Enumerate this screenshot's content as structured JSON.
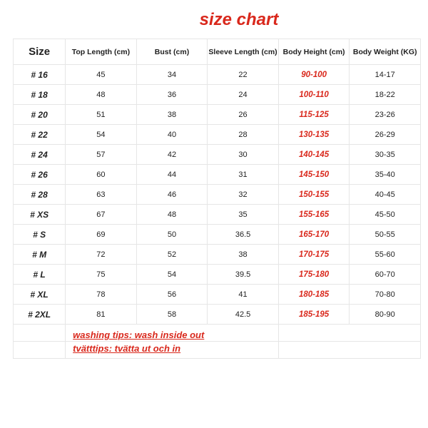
{
  "title": "size chart",
  "title_color": "#d9281c",
  "title_fontsize": 24,
  "border_color": "#e6e6e6",
  "highlight_color": "#d9281c",
  "text_color": "#222222",
  "columns": [
    {
      "label": "Size",
      "key": "size",
      "width": 72,
      "is_label": true
    },
    {
      "label": "Top Length (cm)",
      "key": "top_length",
      "width": 98
    },
    {
      "label": "Bust (cm)",
      "key": "bust",
      "width": 98
    },
    {
      "label": "Sleeve Length (cm)",
      "key": "sleeve",
      "width": 98
    },
    {
      "label": "Body Height (cm)",
      "key": "height",
      "width": 98,
      "highlight": true
    },
    {
      "label": "Body Weight (KG)",
      "key": "weight",
      "width": 98
    }
  ],
  "rows": [
    {
      "size": "# 16",
      "top_length": "45",
      "bust": "34",
      "sleeve": "22",
      "height": "90-100",
      "weight": "14-17"
    },
    {
      "size": "# 18",
      "top_length": "48",
      "bust": "36",
      "sleeve": "24",
      "height": "100-110",
      "weight": "18-22"
    },
    {
      "size": "# 20",
      "top_length": "51",
      "bust": "38",
      "sleeve": "26",
      "height": "115-125",
      "weight": "23-26"
    },
    {
      "size": "# 22",
      "top_length": "54",
      "bust": "40",
      "sleeve": "28",
      "height": "130-135",
      "weight": "26-29"
    },
    {
      "size": "# 24",
      "top_length": "57",
      "bust": "42",
      "sleeve": "30",
      "height": "140-145",
      "weight": "30-35"
    },
    {
      "size": "# 26",
      "top_length": "60",
      "bust": "44",
      "sleeve": "31",
      "height": "145-150",
      "weight": "35-40"
    },
    {
      "size": "# 28",
      "top_length": "63",
      "bust": "46",
      "sleeve": "32",
      "height": "150-155",
      "weight": "40-45"
    },
    {
      "size": "# XS",
      "top_length": "67",
      "bust": "48",
      "sleeve": "35",
      "height": "155-165",
      "weight": "45-50"
    },
    {
      "size": "# S",
      "top_length": "69",
      "bust": "50",
      "sleeve": "36.5",
      "height": "165-170",
      "weight": "50-55"
    },
    {
      "size": "# M",
      "top_length": "72",
      "bust": "52",
      "sleeve": "38",
      "height": "170-175",
      "weight": "55-60"
    },
    {
      "size": "# L",
      "top_length": "75",
      "bust": "54",
      "sleeve": "39.5",
      "height": "175-180",
      "weight": "60-70"
    },
    {
      "size": "# XL",
      "top_length": "78",
      "bust": "56",
      "sleeve": "41",
      "height": "180-185",
      "weight": "70-80"
    },
    {
      "size": "# 2XL",
      "top_length": "81",
      "bust": "58",
      "sleeve": "42.5",
      "height": "185-195",
      "weight": "80-90"
    }
  ],
  "tips": [
    "washing tips: wash inside out",
    "tvätttips: tvätta ut och in"
  ]
}
